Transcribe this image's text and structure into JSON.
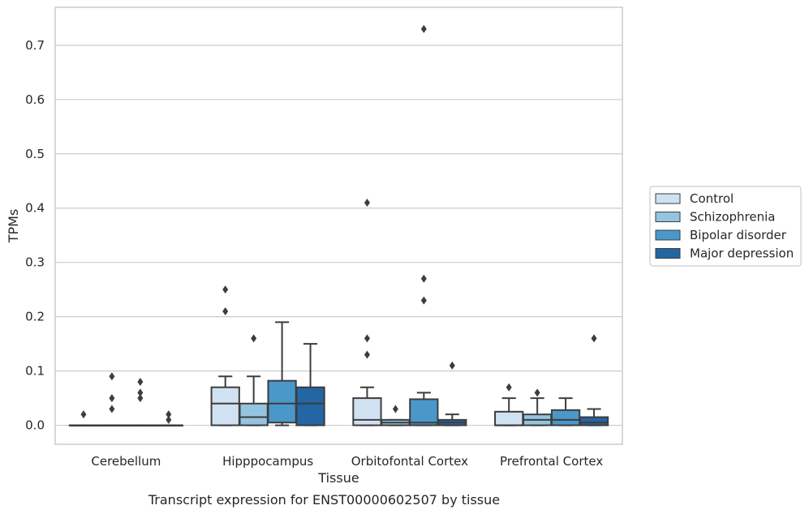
{
  "chart_data": {
    "type": "boxplot",
    "title": "",
    "caption": "Transcript expression for ENST00000602507 by tissue",
    "xlabel": "Tissue",
    "ylabel": "TPMs",
    "ylim": [
      -0.035,
      0.77
    ],
    "yticks": [
      0.0,
      0.1,
      0.2,
      0.3,
      0.4,
      0.5,
      0.6,
      0.7
    ],
    "ytick_labels": [
      "0.0",
      "0.1",
      "0.2",
      "0.3",
      "0.4",
      "0.5",
      "0.6",
      "0.7"
    ],
    "grid": "horizontal",
    "legend_placement": "right-outside",
    "categories": [
      "Cerebellum",
      "Hipppocampus",
      "Orbitofontal Cortex",
      "Prefrontal Cortex"
    ],
    "series": [
      {
        "name": "Control",
        "color": "#d0e1f2",
        "boxes": [
          {
            "q1": 0.0,
            "median": 0.0,
            "q3": 0.0,
            "whisker_low": 0.0,
            "whisker_high": 0.0,
            "outliers": [
              0.02
            ]
          },
          {
            "q1": 0.0,
            "median": 0.04,
            "q3": 0.07,
            "whisker_low": 0.0,
            "whisker_high": 0.09,
            "outliers": [
              0.21,
              0.25
            ]
          },
          {
            "q1": 0.0,
            "median": 0.01,
            "q3": 0.05,
            "whisker_low": 0.0,
            "whisker_high": 0.07,
            "outliers": [
              0.13,
              0.16,
              0.41
            ]
          },
          {
            "q1": 0.0,
            "median": 0.0,
            "q3": 0.025,
            "whisker_low": 0.0,
            "whisker_high": 0.05,
            "outliers": [
              0.07
            ]
          }
        ]
      },
      {
        "name": "Schizophrenia",
        "color": "#94c4df",
        "boxes": [
          {
            "q1": 0.0,
            "median": 0.0,
            "q3": 0.0,
            "whisker_low": 0.0,
            "whisker_high": 0.0,
            "outliers": [
              0.03,
              0.05,
              0.09
            ]
          },
          {
            "q1": 0.0,
            "median": 0.015,
            "q3": 0.04,
            "whisker_low": 0.0,
            "whisker_high": 0.09,
            "outliers": [
              0.16
            ]
          },
          {
            "q1": 0.0,
            "median": 0.005,
            "q3": 0.01,
            "whisker_low": 0.0,
            "whisker_high": 0.01,
            "outliers": [
              0.03
            ]
          },
          {
            "q1": 0.0,
            "median": 0.01,
            "q3": 0.02,
            "whisker_low": 0.0,
            "whisker_high": 0.05,
            "outliers": [
              0.06
            ]
          }
        ]
      },
      {
        "name": "Bipolar disorder",
        "color": "#4a98c9",
        "boxes": [
          {
            "q1": 0.0,
            "median": 0.0,
            "q3": 0.0,
            "whisker_low": 0.0,
            "whisker_high": 0.0,
            "outliers": [
              0.05,
              0.06,
              0.08
            ]
          },
          {
            "q1": 0.005,
            "median": 0.04,
            "q3": 0.082,
            "whisker_low": 0.0,
            "whisker_high": 0.19,
            "outliers": []
          },
          {
            "q1": 0.0,
            "median": 0.005,
            "q3": 0.048,
            "whisker_low": 0.0,
            "whisker_high": 0.06,
            "outliers": [
              0.23,
              0.27,
              0.73
            ]
          },
          {
            "q1": 0.0,
            "median": 0.01,
            "q3": 0.028,
            "whisker_low": 0.0,
            "whisker_high": 0.05,
            "outliers": []
          }
        ]
      },
      {
        "name": "Major depression",
        "color": "#2465a4",
        "boxes": [
          {
            "q1": 0.0,
            "median": 0.0,
            "q3": 0.0,
            "whisker_low": 0.0,
            "whisker_high": 0.0,
            "outliers": [
              0.01,
              0.02
            ]
          },
          {
            "q1": 0.0,
            "median": 0.04,
            "q3": 0.07,
            "whisker_low": 0.0,
            "whisker_high": 0.15,
            "outliers": []
          },
          {
            "q1": 0.0,
            "median": 0.005,
            "q3": 0.01,
            "whisker_low": 0.0,
            "whisker_high": 0.02,
            "outliers": [
              0.11
            ]
          },
          {
            "q1": 0.0,
            "median": 0.005,
            "q3": 0.015,
            "whisker_low": 0.0,
            "whisker_high": 0.03,
            "outliers": [
              0.16
            ]
          }
        ]
      }
    ]
  }
}
